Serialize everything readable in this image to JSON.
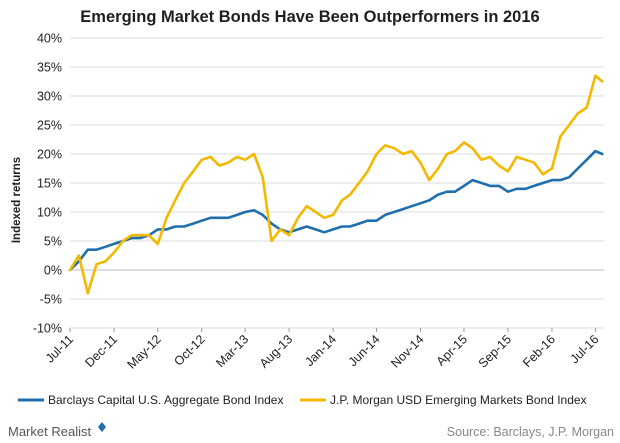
{
  "chart_data": {
    "type": "line",
    "title": "Emerging Market Bonds Have Been Outperformers in 2016",
    "ylabel": "Indexed returns",
    "xlabel": "",
    "ylim": [
      -10,
      40
    ],
    "yticks": [
      -10,
      -5,
      0,
      5,
      10,
      15,
      20,
      25,
      30,
      35,
      40
    ],
    "ytick_labels": [
      "-10%",
      "-5%",
      "0%",
      "5%",
      "10%",
      "15%",
      "20%",
      "25%",
      "30%",
      "35%",
      "40%"
    ],
    "xlim": [
      "2011-07-01",
      "2016-07-31"
    ],
    "xticks": [
      "2011-07-01",
      "2011-12-01",
      "2012-05-01",
      "2012-10-01",
      "2013-03-01",
      "2013-08-01",
      "2014-01-01",
      "2014-06-01",
      "2014-11-01",
      "2015-04-01",
      "2015-09-01",
      "2016-02-01",
      "2016-07-01"
    ],
    "xtick_labels": [
      "Jul-11",
      "Dec-11",
      "May-12",
      "Oct-12",
      "Mar-13",
      "Aug-13",
      "Jan-14",
      "Jun-14",
      "Nov-14",
      "Apr-15",
      "Sep-15",
      "Feb-16",
      "Jul-16"
    ],
    "grid": {
      "horizontal": true,
      "vertical": false
    },
    "legend_position": "bottom",
    "colors": {
      "barclays": "#1f6fad",
      "jpm": "#f5b800"
    },
    "series": [
      {
        "name": "Barclays Capital U.S. Aggregate Bond Index",
        "color": "#1f6fad",
        "x": [
          "2011-07-01",
          "2011-08-01",
          "2011-09-01",
          "2011-10-01",
          "2011-11-01",
          "2011-12-01",
          "2012-01-01",
          "2012-02-01",
          "2012-03-01",
          "2012-04-01",
          "2012-05-01",
          "2012-06-01",
          "2012-07-01",
          "2012-08-01",
          "2012-09-01",
          "2012-10-01",
          "2012-11-01",
          "2012-12-01",
          "2013-01-01",
          "2013-02-01",
          "2013-03-01",
          "2013-04-01",
          "2013-05-01",
          "2013-06-01",
          "2013-07-01",
          "2013-08-01",
          "2013-09-01",
          "2013-10-01",
          "2013-11-01",
          "2013-12-01",
          "2014-01-01",
          "2014-02-01",
          "2014-03-01",
          "2014-04-01",
          "2014-05-01",
          "2014-06-01",
          "2014-07-01",
          "2014-08-01",
          "2014-09-01",
          "2014-10-01",
          "2014-11-01",
          "2014-12-01",
          "2015-01-01",
          "2015-02-01",
          "2015-03-01",
          "2015-04-01",
          "2015-05-01",
          "2015-06-01",
          "2015-07-01",
          "2015-08-01",
          "2015-09-01",
          "2015-10-01",
          "2015-11-01",
          "2015-12-01",
          "2016-01-01",
          "2016-02-01",
          "2016-03-01",
          "2016-04-01",
          "2016-05-01",
          "2016-06-01",
          "2016-07-01",
          "2016-07-25"
        ],
        "values": [
          0.0,
          1.5,
          3.5,
          3.5,
          4.0,
          4.5,
          5.0,
          5.5,
          5.5,
          6.0,
          7.0,
          7.0,
          7.5,
          7.5,
          8.0,
          8.5,
          9.0,
          9.0,
          9.0,
          9.5,
          10.0,
          10.3,
          9.5,
          8.0,
          7.0,
          6.5,
          7.0,
          7.5,
          7.0,
          6.5,
          7.0,
          7.5,
          7.5,
          8.0,
          8.5,
          8.5,
          9.5,
          10.0,
          10.5,
          11.0,
          11.5,
          12.0,
          13.0,
          13.5,
          13.5,
          14.5,
          15.5,
          15.0,
          14.5,
          14.5,
          13.5,
          14.0,
          14.0,
          14.5,
          15.0,
          15.5,
          15.5,
          16.0,
          17.5,
          19.0,
          20.5,
          20.0
        ]
      },
      {
        "name": "J.P. Morgan USD Emerging Markets Bond Index",
        "color": "#f5b800",
        "x": [
          "2011-07-01",
          "2011-08-01",
          "2011-09-01",
          "2011-10-01",
          "2011-11-01",
          "2011-12-01",
          "2012-01-01",
          "2012-02-01",
          "2012-03-01",
          "2012-04-01",
          "2012-05-01",
          "2012-06-01",
          "2012-07-01",
          "2012-08-01",
          "2012-09-01",
          "2012-10-01",
          "2012-11-01",
          "2012-12-01",
          "2013-01-01",
          "2013-02-01",
          "2013-03-01",
          "2013-04-01",
          "2013-05-01",
          "2013-06-01",
          "2013-07-01",
          "2013-08-01",
          "2013-09-01",
          "2013-10-01",
          "2013-11-01",
          "2013-12-01",
          "2014-01-01",
          "2014-02-01",
          "2014-03-01",
          "2014-04-01",
          "2014-05-01",
          "2014-06-01",
          "2014-07-01",
          "2014-08-01",
          "2014-09-01",
          "2014-10-01",
          "2014-11-01",
          "2014-12-01",
          "2015-01-01",
          "2015-02-01",
          "2015-03-01",
          "2015-04-01",
          "2015-05-01",
          "2015-06-01",
          "2015-07-01",
          "2015-08-01",
          "2015-09-01",
          "2015-10-01",
          "2015-11-01",
          "2015-12-01",
          "2016-01-01",
          "2016-02-01",
          "2016-03-01",
          "2016-04-01",
          "2016-05-01",
          "2016-06-01",
          "2016-07-01",
          "2016-07-25"
        ],
        "values": [
          0.0,
          2.5,
          -4.0,
          1.0,
          1.5,
          3.0,
          5.0,
          6.0,
          6.0,
          6.0,
          4.5,
          9.0,
          12.0,
          15.0,
          17.0,
          19.0,
          19.5,
          18.0,
          18.5,
          19.5,
          19.0,
          20.0,
          16.0,
          5.0,
          7.0,
          6.0,
          9.0,
          11.0,
          10.0,
          9.0,
          9.5,
          12.0,
          13.0,
          15.0,
          17.0,
          20.0,
          21.5,
          21.0,
          20.0,
          20.5,
          18.5,
          15.5,
          17.5,
          20.0,
          20.5,
          22.0,
          21.0,
          19.0,
          19.5,
          18.0,
          17.0,
          19.5,
          19.0,
          18.5,
          16.5,
          17.5,
          23.0,
          25.0,
          27.0,
          28.0,
          33.5,
          32.5
        ]
      }
    ]
  },
  "footer": {
    "brand": "Market Realist",
    "source": "Source: Barclays, J.P. Morgan"
  }
}
